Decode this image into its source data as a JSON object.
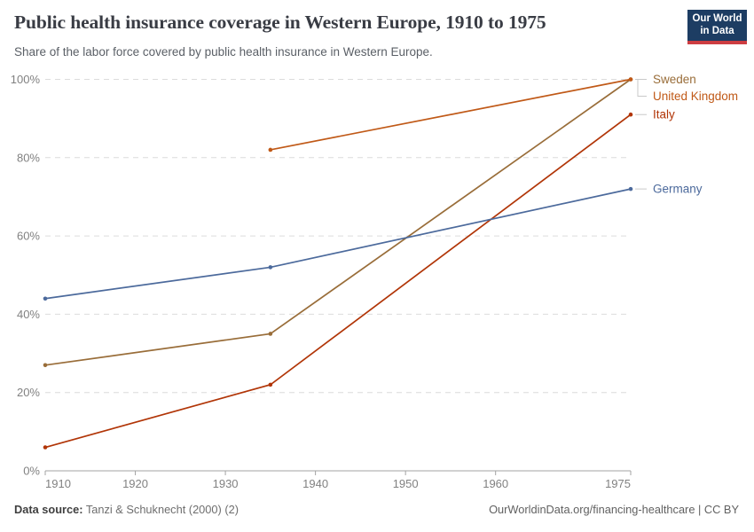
{
  "header": {
    "title": "Public health insurance coverage in Western Europe, 1910 to 1975",
    "subtitle": "Share of the labor force covered by public health insurance in Western Europe.",
    "logo": {
      "line1": "Our World",
      "line2": "in Data",
      "bg_color": "#1d3d63",
      "bar_color": "#cd3d42"
    }
  },
  "chart_data": {
    "type": "line",
    "title": "Public health insurance coverage in Western Europe, 1910 to 1975",
    "xlabel": "",
    "ylabel": "",
    "xlim": [
      1910,
      1975
    ],
    "ylim": [
      0,
      100
    ],
    "grid": "horizontal-dashed",
    "legend_position": "right",
    "x_ticks": [
      1910,
      1920,
      1930,
      1940,
      1950,
      1960,
      1975
    ],
    "x_tick_labels": [
      "1910",
      "1920",
      "1930",
      "1940",
      "1950",
      "1960",
      "1975"
    ],
    "y_ticks": [
      0,
      20,
      40,
      60,
      80,
      100
    ],
    "y_tick_labels": [
      "0%",
      "20%",
      "40%",
      "60%",
      "80%",
      "100%"
    ],
    "series": [
      {
        "name": "Sweden",
        "color": "#996D39",
        "points": [
          {
            "x": 1910,
            "y": 27
          },
          {
            "x": 1935,
            "y": 35
          },
          {
            "x": 1975,
            "y": 100
          }
        ]
      },
      {
        "name": "United Kingdom",
        "color": "#C05917",
        "points": [
          {
            "x": 1935,
            "y": 82
          },
          {
            "x": 1975,
            "y": 100
          }
        ]
      },
      {
        "name": "Italy",
        "color": "#B13507",
        "points": [
          {
            "x": 1910,
            "y": 6
          },
          {
            "x": 1935,
            "y": 22
          },
          {
            "x": 1975,
            "y": 91
          }
        ]
      },
      {
        "name": "Germany",
        "color": "#4C6A9C",
        "points": [
          {
            "x": 1910,
            "y": 44
          },
          {
            "x": 1935,
            "y": 52
          },
          {
            "x": 1975,
            "y": 72
          }
        ]
      }
    ],
    "style": {
      "gridline_color": "#dcdcdc",
      "axis_color": "#a3a3a3",
      "tick_label_color": "#818181",
      "legend_connector_color": "#c9c9c9"
    }
  },
  "footer": {
    "source_label": "Data source:",
    "source_value": "Tanzi & Schuknecht (2000) (2)",
    "note": "OurWorldinData.org/financing-healthcare | CC BY"
  }
}
